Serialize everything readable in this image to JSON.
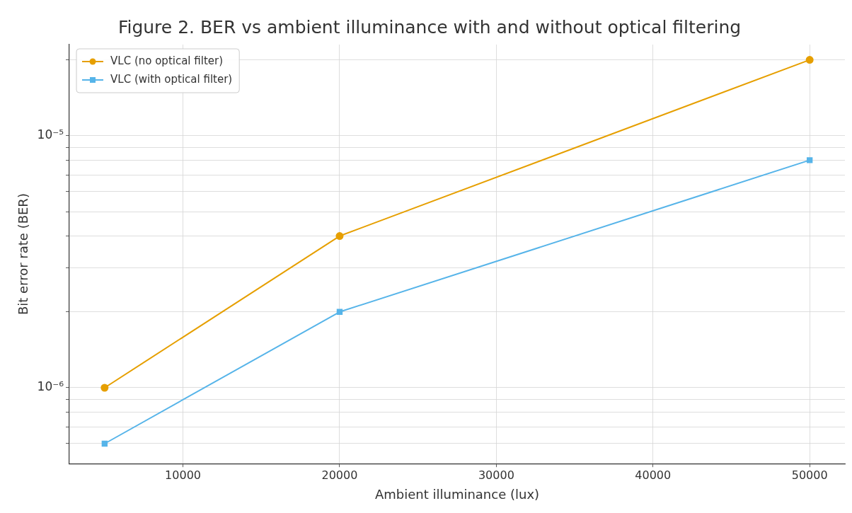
{
  "chart_data": {
    "type": "line",
    "title": "Figure 2. BER vs ambient illuminance with and without optical filtering",
    "xlabel": "Ambient illuminance (lux)",
    "ylabel": "Bit error rate (BER)",
    "x": [
      5000,
      20000,
      50000
    ],
    "series": [
      {
        "name": "VLC (no optical filter)",
        "color": "#e69f00",
        "marker": "circle",
        "values": [
          1e-06,
          4e-06,
          2e-05
        ]
      },
      {
        "name": "VLC (with optical filter)",
        "color": "#56b4e9",
        "marker": "square",
        "values": [
          6e-07,
          2e-06,
          8e-06
        ]
      }
    ],
    "log": "y",
    "xlim": [
      2750,
      52250
    ],
    "ylim": [
      5e-07,
      2.3e-05
    ],
    "xticks": [
      10000,
      20000,
      30000,
      40000,
      50000
    ],
    "yticks": [
      {
        "value": 6e-07,
        "label": null
      },
      {
        "value": 7e-07,
        "label": null
      },
      {
        "value": 8e-07,
        "label": null
      },
      {
        "value": 9e-07,
        "label": null
      },
      {
        "value": 1e-06,
        "label": "10⁻⁶"
      },
      {
        "value": 2e-06,
        "label": null
      },
      {
        "value": 3e-06,
        "label": null
      },
      {
        "value": 4e-06,
        "label": null
      },
      {
        "value": 5e-06,
        "label": null
      },
      {
        "value": 6e-06,
        "label": null
      },
      {
        "value": 7e-06,
        "label": null
      },
      {
        "value": 8e-06,
        "label": null
      },
      {
        "value": 9e-06,
        "label": null
      },
      {
        "value": 1e-05,
        "label": "10⁻⁵"
      },
      {
        "value": 2e-05,
        "label": null
      }
    ],
    "grid": true,
    "legend": "top left",
    "line_style": "solid"
  }
}
